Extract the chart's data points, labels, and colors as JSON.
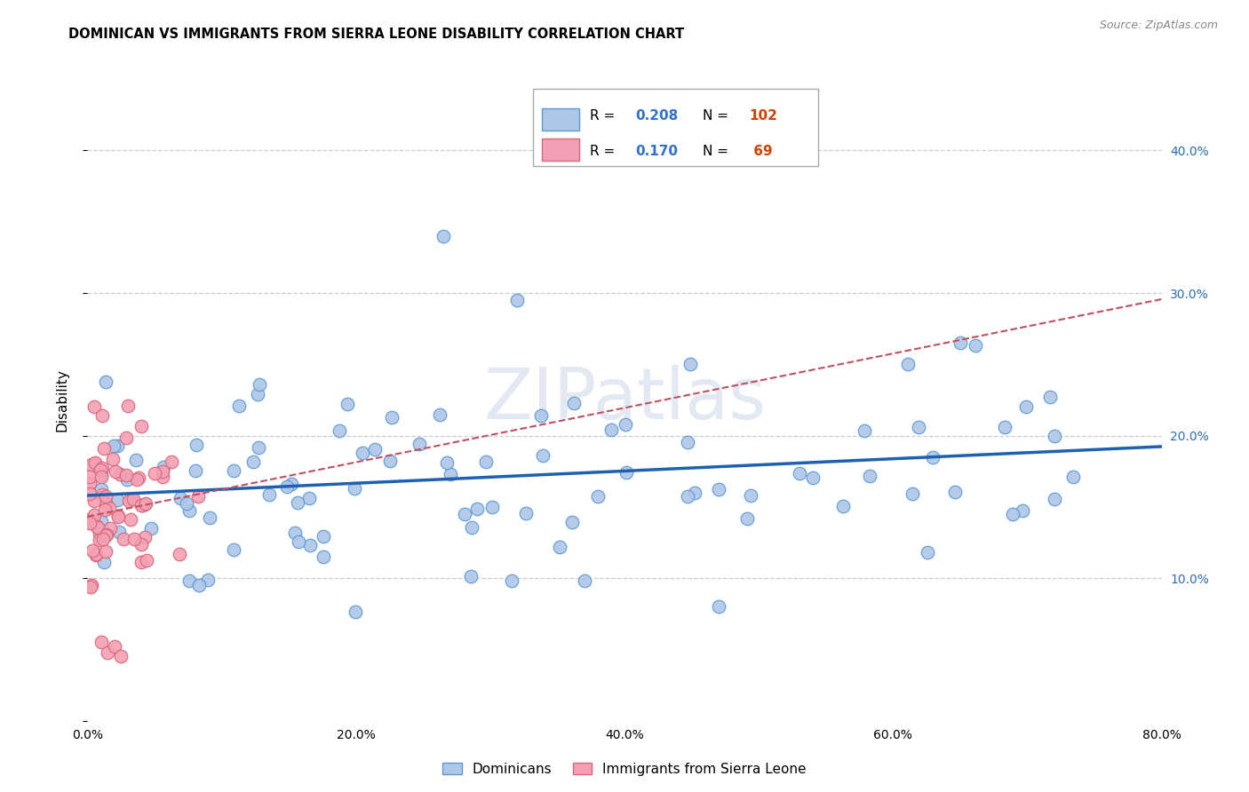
{
  "title": "DOMINICAN VS IMMIGRANTS FROM SIERRA LEONE DISABILITY CORRELATION CHART",
  "source": "Source: ZipAtlas.com",
  "ylabel": "Disability",
  "xlim": [
    0.0,
    0.8
  ],
  "ylim": [
    0.0,
    0.45
  ],
  "blue_color": "#aec6e8",
  "blue_edge": "#5b9bd5",
  "pink_color": "#f4a0b4",
  "pink_edge": "#d9687a",
  "blue_line_color": "#2060b0",
  "pink_line_color": "#c05060",
  "legend_R_blue": "0.208",
  "legend_N_blue": "102",
  "legend_R_pink": "0.170",
  "legend_N_pink": "69",
  "legend_num_color": "#3070d0",
  "legend_n_color": "#d04000",
  "background_color": "#ffffff"
}
